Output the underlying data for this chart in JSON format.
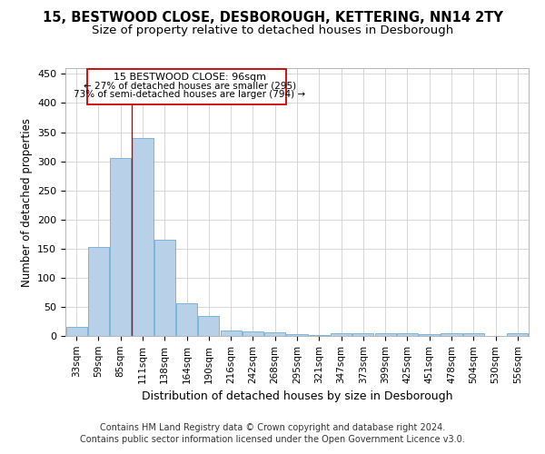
{
  "title": "15, BESTWOOD CLOSE, DESBOROUGH, KETTERING, NN14 2TY",
  "subtitle": "Size of property relative to detached houses in Desborough",
  "xlabel": "Distribution of detached houses by size in Desborough",
  "ylabel": "Number of detached properties",
  "footer_line1": "Contains HM Land Registry data © Crown copyright and database right 2024.",
  "footer_line2": "Contains public sector information licensed under the Open Government Licence v3.0.",
  "bar_labels": [
    "33sqm",
    "59sqm",
    "85sqm",
    "111sqm",
    "138sqm",
    "164sqm",
    "190sqm",
    "216sqm",
    "242sqm",
    "268sqm",
    "295sqm",
    "321sqm",
    "347sqm",
    "373sqm",
    "399sqm",
    "425sqm",
    "451sqm",
    "478sqm",
    "504sqm",
    "530sqm",
    "556sqm"
  ],
  "bar_heights": [
    15,
    153,
    305,
    340,
    165,
    56,
    35,
    10,
    8,
    6,
    3,
    2,
    5,
    4,
    4,
    4,
    3,
    4,
    5,
    0,
    4
  ],
  "bar_color": "#b8d0e8",
  "bar_edge_color": "#6aaed6",
  "grid_color": "#d0d0d0",
  "annotation_box_color": "#cc0000",
  "annotation_text_line1": "15 BESTWOOD CLOSE: 96sqm",
  "annotation_text_line2": "← 27% of detached houses are smaller (295)",
  "annotation_text_line3": "73% of semi-detached houses are larger (794) →",
  "property_line_x": 2.5,
  "ylim": [
    0,
    460
  ],
  "yticks": [
    0,
    50,
    100,
    150,
    200,
    250,
    300,
    350,
    400,
    450
  ],
  "background_color": "#ffffff",
  "title_fontsize": 10.5,
  "subtitle_fontsize": 9.5,
  "xlabel_fontsize": 9,
  "ylabel_fontsize": 8.5,
  "tick_fontsize": 7.5,
  "annotation_fontsize": 8,
  "footer_fontsize": 7
}
